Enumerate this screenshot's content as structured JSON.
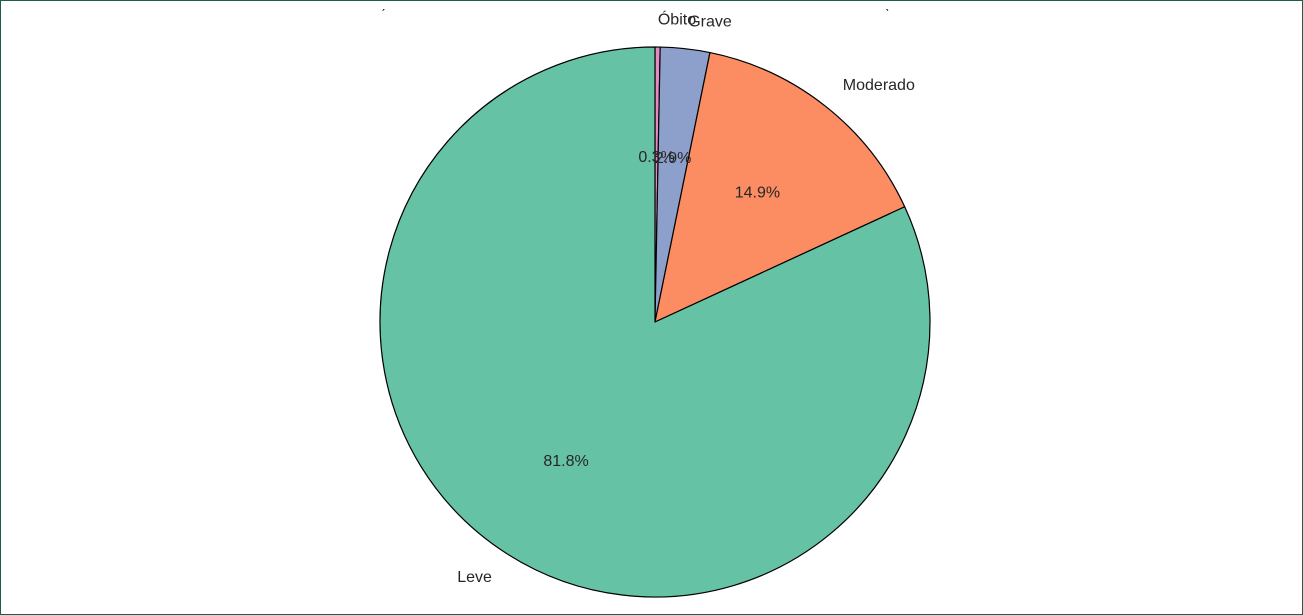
{
  "chart_data": {
    "type": "pie",
    "title": "",
    "start_angle_deg": 90,
    "direction": "clockwise",
    "edge_color": "#000000",
    "slices": [
      {
        "label": "Óbito",
        "value": 0.3,
        "pct_label": "0.3%",
        "color": "#e78ac3"
      },
      {
        "label": "Grave",
        "value": 2.9,
        "pct_label": "2.9%",
        "color": "#8da0cb"
      },
      {
        "label": "Moderado",
        "value": 14.9,
        "pct_label": "14.9%",
        "color": "#fc8d62"
      },
      {
        "label": "Leve",
        "value": 81.8,
        "pct_label": "81.8%",
        "color": "#66c2a5"
      }
    ]
  },
  "frame": {
    "border_color": "#1f5c4a"
  }
}
